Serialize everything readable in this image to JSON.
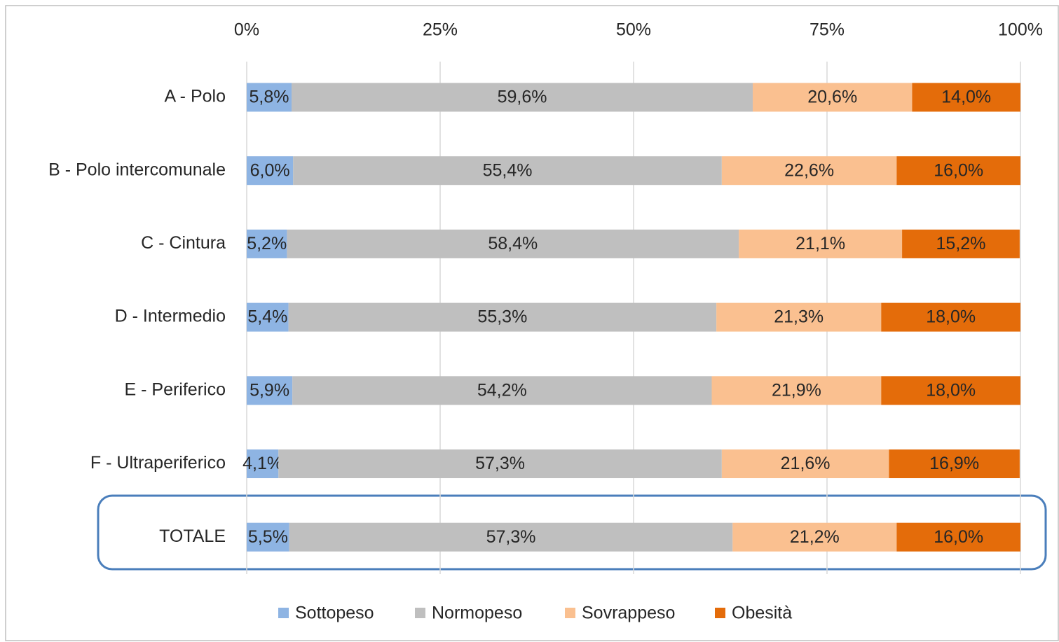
{
  "chart_data": {
    "type": "bar",
    "orientation": "horizontal",
    "stacked": true,
    "categories": [
      "A - Polo",
      "B - Polo intercomunale",
      "C - Cintura",
      "D - Intermedio",
      "E - Periferico",
      "F - Ultraperiferico",
      "TOTALE"
    ],
    "series": [
      {
        "name": "Sottopeso",
        "color": "#8eb4e3",
        "values": [
          5.8,
          6.0,
          5.2,
          5.4,
          5.9,
          4.1,
          5.5
        ],
        "value_labels": [
          "5,8%",
          "6,0%",
          "5,2%",
          "5,4%",
          "5,9%",
          "4,1%",
          "5,5%"
        ]
      },
      {
        "name": "Normopeso",
        "color": "#bfbfbf",
        "values": [
          59.6,
          55.4,
          58.4,
          55.3,
          54.2,
          57.3,
          57.3
        ],
        "value_labels": [
          "59,6%",
          "55,4%",
          "58,4%",
          "55,3%",
          "54,2%",
          "57,3%",
          "57,3%"
        ]
      },
      {
        "name": "Sovrappeso",
        "color": "#fac090",
        "values": [
          20.6,
          22.6,
          21.1,
          21.3,
          21.9,
          21.6,
          21.2
        ],
        "value_labels": [
          "20,6%",
          "22,6%",
          "21,1%",
          "21,3%",
          "21,9%",
          "21,6%",
          "21,2%"
        ]
      },
      {
        "name": "Obesità",
        "color": "#e46c0a",
        "values": [
          14.0,
          16.0,
          15.2,
          18.0,
          18.0,
          16.9,
          16.0
        ],
        "value_labels": [
          "14,0%",
          "16,0%",
          "15,2%",
          "18,0%",
          "18,0%",
          "16,9%",
          "16,0%"
        ]
      }
    ],
    "xlim": [
      0,
      100
    ],
    "xticks": [
      {
        "value": 0,
        "label": "0%"
      },
      {
        "value": 25,
        "label": "25%"
      },
      {
        "value": 50,
        "label": "50%"
      },
      {
        "value": 75,
        "label": "75%"
      },
      {
        "value": 100,
        "label": "100%"
      }
    ],
    "grid": true,
    "legend": "bottom"
  }
}
